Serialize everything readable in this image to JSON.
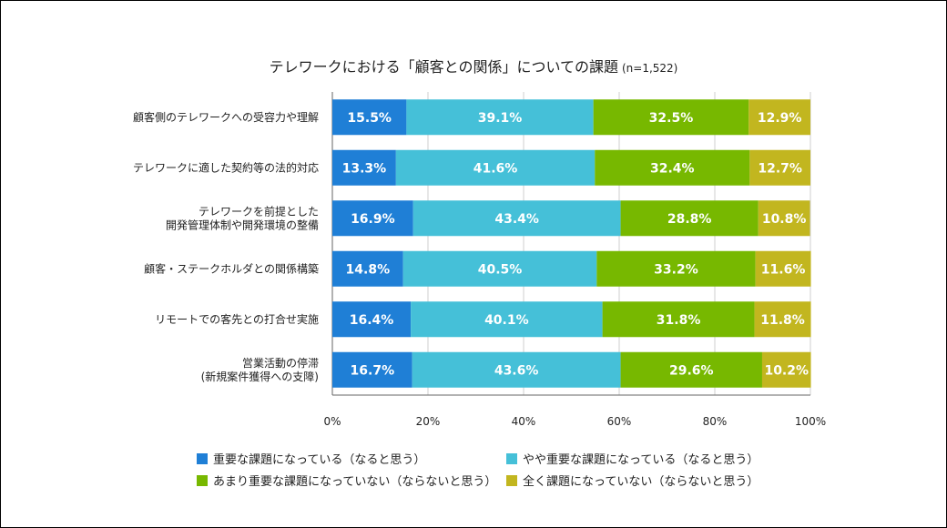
{
  "title": "テレワークにおける「顧客との関係」についての課題",
  "sample": "(n=1,522)",
  "colors": [
    "#1f7fd6",
    "#45c0d8",
    "#77b800",
    "#c2b61f"
  ],
  "chart_data": {
    "type": "bar",
    "orientation": "horizontal",
    "stacked": "100%",
    "categories": [
      [
        "顧客側のテレワークへの受容力や理解"
      ],
      [
        "テレワークに適した契約等の法的対応"
      ],
      [
        "テレワークを前提とした",
        "開発管理体制や開発環境の整備"
      ],
      [
        "顧客・ステークホルダとの関係構築"
      ],
      [
        "リモートでの客先との打合せ実施"
      ],
      [
        "営業活動の停滞",
        "(新規案件獲得への支障)"
      ]
    ],
    "series": [
      {
        "name": "重要な課題になっている（なると思う）",
        "values": [
          15.5,
          13.3,
          16.9,
          14.8,
          16.4,
          16.7
        ]
      },
      {
        "name": "やや重要な課題になっている（なると思う）",
        "values": [
          39.1,
          41.6,
          43.4,
          40.5,
          40.1,
          43.6
        ]
      },
      {
        "name": "あまり重要な課題になっていない（ならないと思う）",
        "values": [
          32.5,
          32.4,
          28.8,
          33.2,
          31.8,
          29.6
        ]
      },
      {
        "name": "全く課題になっていない（ならないと思う）",
        "values": [
          12.9,
          12.7,
          10.8,
          11.6,
          11.8,
          10.2
        ]
      }
    ],
    "xlim": [
      0,
      100
    ],
    "xticks": [
      "0%",
      "20%",
      "40%",
      "60%",
      "80%",
      "100%"
    ],
    "grid": true,
    "legend_position": "bottom"
  }
}
